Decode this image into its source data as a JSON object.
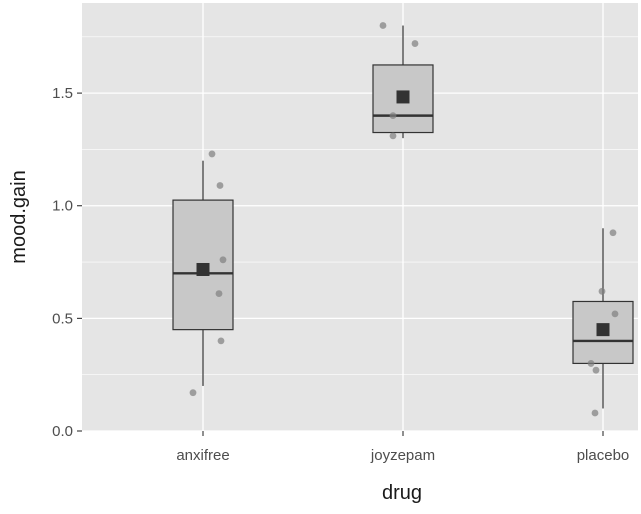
{
  "chart_data": {
    "type": "boxplot",
    "xlabel": "drug",
    "ylabel": "mood.gain",
    "ylim": [
      0.0,
      1.9
    ],
    "yticks": [
      0.0,
      0.5,
      1.0,
      1.5
    ],
    "ytick_labels": [
      "0.0",
      "0.5",
      "1.0",
      "1.5"
    ],
    "categories": [
      "anxifree",
      "joyzepam",
      "placebo"
    ],
    "grid": true,
    "colors": {
      "panel": "#e5e5e5",
      "grid": "#ffffff",
      "box_fill": "#c8c8c8",
      "box_stroke": "#333333",
      "median": "#333333",
      "mean_marker": "#333333",
      "points": "#7f7f7f",
      "tick_text": "#4d4d4d",
      "title_text": "#1a1a1a"
    },
    "boxes": [
      {
        "category": "anxifree",
        "lower_whisker": 0.2,
        "q1": 0.45,
        "median": 0.7,
        "q3": 1.025,
        "upper_whisker": 1.2,
        "mean": 0.717
      },
      {
        "category": "joyzepam",
        "lower_whisker": 1.3,
        "q1": 1.325,
        "median": 1.4,
        "q3": 1.625,
        "upper_whisker": 1.8,
        "mean": 1.483
      },
      {
        "category": "placebo",
        "lower_whisker": 0.1,
        "q1": 0.3,
        "median": 0.4,
        "q3": 0.575,
        "upper_whisker": 0.9,
        "mean": 0.45
      }
    ],
    "points": [
      {
        "category": "anxifree",
        "y": 0.17,
        "jitter": -0.05
      },
      {
        "category": "anxifree",
        "y": 0.4,
        "jitter": 0.09
      },
      {
        "category": "anxifree",
        "y": 0.61,
        "jitter": 0.08
      },
      {
        "category": "anxifree",
        "y": 0.76,
        "jitter": 0.1
      },
      {
        "category": "anxifree",
        "y": 1.09,
        "jitter": 0.085
      },
      {
        "category": "anxifree",
        "y": 1.23,
        "jitter": 0.045
      },
      {
        "category": "joyzepam",
        "y": 1.31,
        "jitter": -0.05
      },
      {
        "category": "joyzepam",
        "y": 1.4,
        "jitter": -0.05
      },
      {
        "category": "joyzepam",
        "y": 1.72,
        "jitter": 0.06
      },
      {
        "category": "joyzepam",
        "y": 1.8,
        "jitter": -0.1
      },
      {
        "category": "placebo",
        "y": 0.08,
        "jitter": -0.04
      },
      {
        "category": "placebo",
        "y": 0.27,
        "jitter": -0.035
      },
      {
        "category": "placebo",
        "y": 0.3,
        "jitter": -0.06
      },
      {
        "category": "placebo",
        "y": 0.52,
        "jitter": 0.06
      },
      {
        "category": "placebo",
        "y": 0.62,
        "jitter": -0.005
      },
      {
        "category": "placebo",
        "y": 0.88,
        "jitter": 0.05
      }
    ]
  }
}
